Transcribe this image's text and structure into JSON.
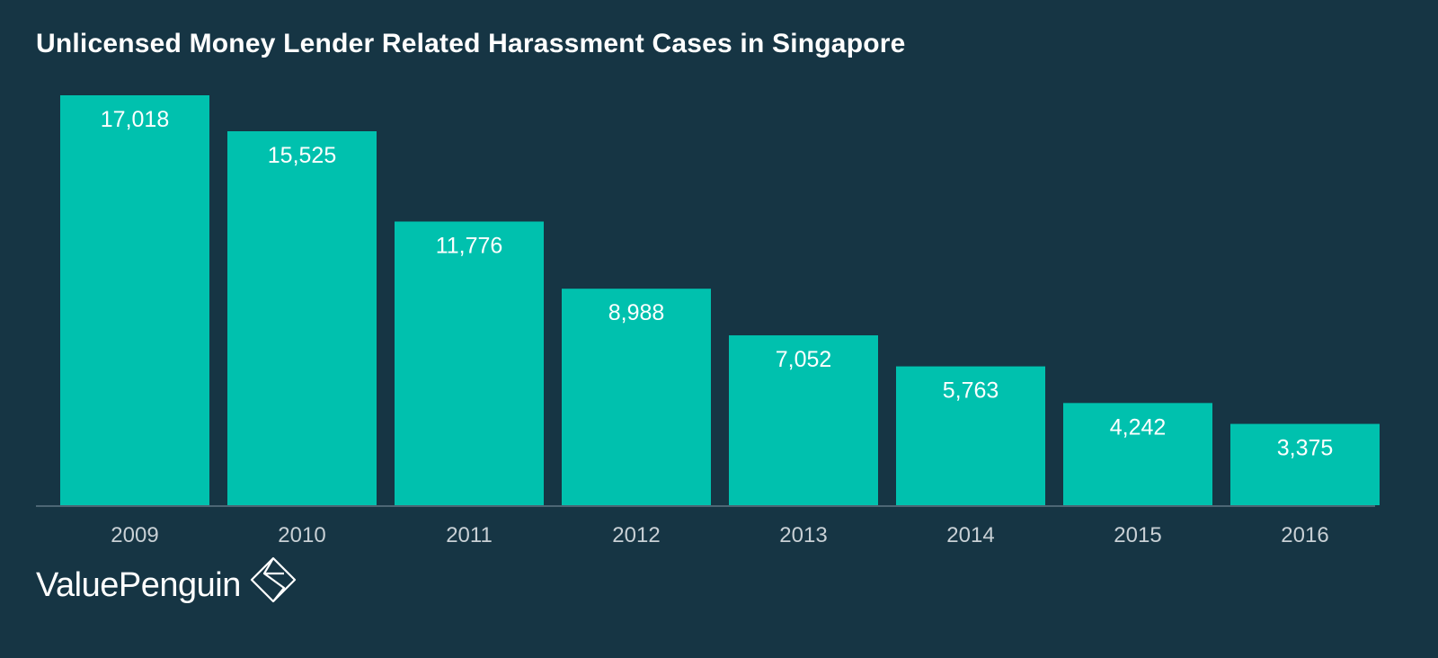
{
  "chart_data": {
    "type": "bar",
    "title": "Unlicensed Money Lender Related Harassment Cases in Singapore",
    "categories": [
      "2009",
      "2010",
      "2011",
      "2012",
      "2013",
      "2014",
      "2015",
      "2016"
    ],
    "values": [
      17018,
      15525,
      11776,
      8988,
      7052,
      5763,
      4242,
      3375
    ],
    "value_labels": [
      "17,018",
      "15,525",
      "11,776",
      "8,988",
      "7,052",
      "5,763",
      "4,242",
      "3,375"
    ],
    "xlabel": "",
    "ylabel": "",
    "ylim": [
      0,
      17018
    ],
    "grid": false,
    "legend": "none",
    "colors": {
      "bar": "#00c1ae",
      "background": "#163544",
      "axis": "#5e7784"
    }
  },
  "brand": {
    "name": "ValuePenguin",
    "icon": "valuepenguin-logo-icon"
  }
}
